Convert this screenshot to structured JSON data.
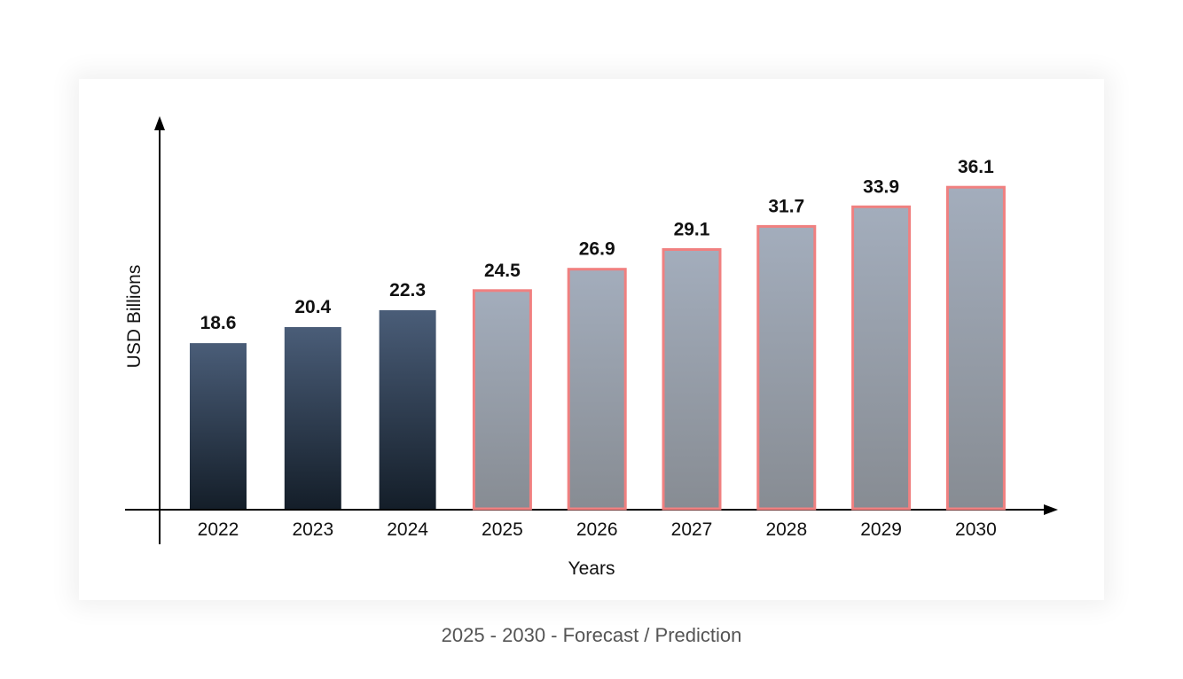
{
  "caption": "2025 - 2030 - Forecast / Prediction",
  "chart_data": {
    "type": "bar",
    "categories": [
      "2022",
      "2023",
      "2024",
      "2025",
      "2026",
      "2027",
      "2028",
      "2029",
      "2030"
    ],
    "values": [
      18.6,
      20.4,
      22.3,
      24.5,
      26.9,
      29.1,
      31.7,
      33.9,
      36.1
    ],
    "forecast": [
      false,
      false,
      false,
      true,
      true,
      true,
      true,
      true,
      true
    ],
    "title": "",
    "xlabel": "Years",
    "ylabel": "USD Billions",
    "ylim": [
      0,
      44
    ],
    "grid": false,
    "y_ticks_visible": false,
    "colors": {
      "actual_top": "#4a5d78",
      "actual_bottom": "#141e29",
      "forecast_top": "#a3adbc",
      "forecast_bottom": "#878c93",
      "forecast_border": "#f08080",
      "axis": "#000000"
    }
  }
}
